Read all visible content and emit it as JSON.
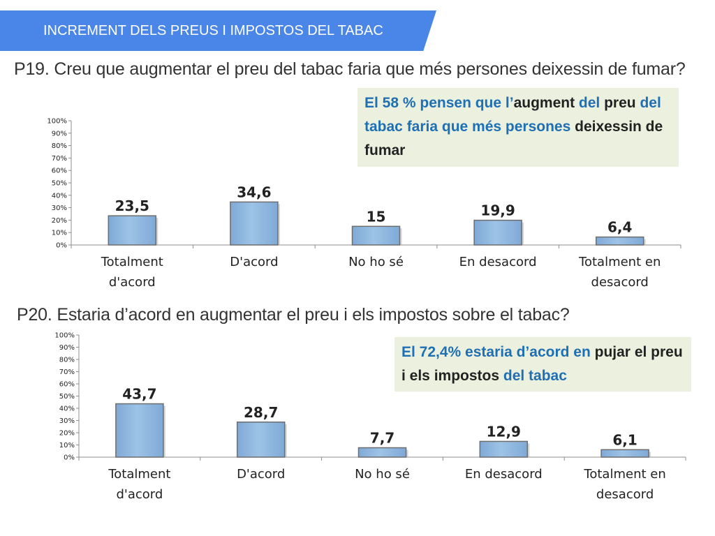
{
  "header": {
    "title": "INCREMENT DELS PREUS I IMPOSTOS DEL TABAC"
  },
  "colors": {
    "banner": "#4a86e8",
    "bar_fill": "#9dc3e6",
    "bar_stroke": "#6d6d6d",
    "callout_bg": "#ebf1de",
    "callout_accent": "#1f6fb5"
  },
  "q19": {
    "question": "P19. Creu que augmentar el preu del tabac faria que més persones deixessin de fumar?",
    "callout": [
      {
        "t": "El 58 % pensen que l’",
        "c": "b"
      },
      {
        "t": "augment",
        "c": "k"
      },
      {
        "t": " del ",
        "c": "b"
      },
      {
        "t": "preu",
        "c": "k"
      },
      {
        "t": " del tabac faria que més ",
        "c": "b"
      },
      {
        "t": "persones",
        "c": "b"
      },
      {
        "t": " deixessin de fumar",
        "c": "k"
      }
    ]
  },
  "q20": {
    "question": "P20. Estaria d’acord en augmentar el preu i els impostos sobre el tabac?",
    "callout": [
      {
        "t": "El 72,4% estaria d’acord en ",
        "c": "b"
      },
      {
        "t": "pujar el preu i els impostos ",
        "c": "k"
      },
      {
        "t": "del tabac",
        "c": "b"
      }
    ]
  },
  "chart_data": [
    {
      "type": "bar",
      "title": "P19. Creu que augmentar el preu del tabac faria que més persones deixessin de fumar?",
      "categories": [
        [
          "Totalment",
          "d'acord"
        ],
        [
          "D'acord"
        ],
        [
          "No ho sé"
        ],
        [
          "En desacord"
        ],
        [
          "Totalment en",
          "desacord"
        ]
      ],
      "values": [
        23.5,
        34.6,
        15,
        19.9,
        6.4
      ],
      "labels": [
        "23,5",
        "34,6",
        "15",
        "19,9",
        "6,4"
      ],
      "yticks": [
        "0%",
        "10%",
        "20%",
        "30%",
        "40%",
        "50%",
        "60%",
        "70%",
        "80%",
        "90%",
        "100%"
      ],
      "ylim": [
        0,
        100
      ],
      "xlabel": "",
      "ylabel": ""
    },
    {
      "type": "bar",
      "title": "P20. Estaria d’acord en augmentar el preu i els impostos sobre el tabac?",
      "categories": [
        [
          "Totalment",
          "d'acord"
        ],
        [
          "D'acord"
        ],
        [
          "No ho sé"
        ],
        [
          "En desacord"
        ],
        [
          "Totalment en",
          "desacord"
        ]
      ],
      "values": [
        43.7,
        28.7,
        7.7,
        12.9,
        6.1
      ],
      "labels": [
        "43,7",
        "28,7",
        "7,7",
        "12,9",
        "6,1"
      ],
      "yticks": [
        "0%",
        "10%",
        "20%",
        "30%",
        "40%",
        "50%",
        "60%",
        "70%",
        "80%",
        "90%",
        "100%"
      ],
      "ylim": [
        0,
        100
      ],
      "xlabel": "",
      "ylabel": ""
    }
  ]
}
